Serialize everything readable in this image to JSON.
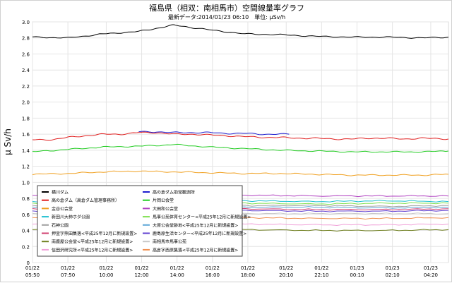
{
  "chart_data": {
    "type": "line",
    "title": "福島県（相双：南相馬市）空間線量率グラフ",
    "subtitle": "最新データ:2014/01/23 06:10　単位: μSv/h",
    "ylabel": "μ Sv/h",
    "xlabel": "",
    "ylim": [
      0,
      3.0
    ],
    "y_ticks": [
      "0",
      "0.2",
      "0.4",
      "0.6",
      "0.8",
      "1.0",
      "1.2",
      "1.4",
      "1.6",
      "1.8",
      "2.0",
      "2.2",
      "2.4",
      "2.6",
      "2.8",
      "3.0"
    ],
    "x_range_hours": [
      0,
      23.5
    ],
    "x_ticks": [
      {
        "date": "01/22",
        "time": "05:50",
        "h": 0
      },
      {
        "date": "01/22",
        "time": "07:50",
        "h": 2
      },
      {
        "date": "01/22",
        "time": "10:00",
        "h": 4.1667
      },
      {
        "date": "01/22",
        "time": "12:00",
        "h": 6.1667
      },
      {
        "date": "01/22",
        "time": "14:00",
        "h": 8.1667
      },
      {
        "date": "01/22",
        "time": "16:00",
        "h": 10.1667
      },
      {
        "date": "01/22",
        "time": "18:00",
        "h": 12.1667
      },
      {
        "date": "01/22",
        "time": "20:10",
        "h": 14.3333
      },
      {
        "date": "01/22",
        "time": "22:10",
        "h": 16.3333
      },
      {
        "date": "01/23",
        "time": "00:10",
        "h": 18.3333
      },
      {
        "date": "01/23",
        "time": "02:10",
        "h": 20.3333
      },
      {
        "date": "01/23",
        "time": "04:20",
        "h": 22.5
      }
    ],
    "grid": true,
    "legend_position": "bottom-left",
    "series": [
      {
        "name": "横川ダム",
        "color": "#000000",
        "x": [
          0,
          2,
          4,
          6,
          7,
          8,
          9,
          10,
          12,
          14,
          16,
          18,
          20,
          22,
          23.5
        ],
        "values": [
          2.81,
          2.8,
          2.85,
          2.88,
          2.92,
          2.96,
          2.93,
          2.9,
          2.85,
          2.84,
          2.82,
          2.81,
          2.81,
          2.8,
          2.81
        ]
      },
      {
        "name": "高の倉ダム助常観測所",
        "color": "#1f1fd0",
        "x": [
          6.0,
          7,
          8,
          9,
          10,
          11,
          12,
          13,
          14.5
        ],
        "values": [
          1.63,
          1.63,
          1.62,
          1.62,
          1.62,
          1.61,
          1.61,
          1.6,
          1.6
        ]
      },
      {
        "name": "高の倉ダム（高倉ダム管理事務所）",
        "color": "#e02020",
        "x": [
          0,
          1,
          2,
          3,
          4,
          5,
          6,
          7,
          8,
          9,
          10,
          11,
          12,
          13,
          14,
          15,
          16,
          17,
          18,
          19,
          20,
          21,
          22,
          23.5
        ],
        "values": [
          1.53,
          1.53,
          1.56,
          1.58,
          1.6,
          1.6,
          1.62,
          1.62,
          1.6,
          1.6,
          1.59,
          1.58,
          1.57,
          1.56,
          1.56,
          1.55,
          1.55,
          1.54,
          1.54,
          1.55,
          1.55,
          1.54,
          1.55,
          1.54
        ]
      },
      {
        "name": "片岡公会堂",
        "color": "#22cc22",
        "x": [
          0,
          2,
          4,
          6,
          8,
          10,
          12,
          14,
          16,
          18,
          20,
          22,
          23.5
        ],
        "values": [
          1.38,
          1.41,
          1.44,
          1.45,
          1.47,
          1.44,
          1.42,
          1.4,
          1.39,
          1.38,
          1.38,
          1.38,
          1.39
        ]
      },
      {
        "name": "金谷公会堂",
        "color": "#f0a020",
        "x": [
          0,
          2,
          4,
          6,
          8,
          10,
          12,
          14,
          16,
          18,
          20,
          22,
          23.5
        ],
        "values": [
          1.1,
          1.11,
          1.13,
          1.14,
          1.13,
          1.12,
          1.11,
          1.11,
          1.1,
          1.09,
          1.09,
          1.09,
          1.1
        ]
      },
      {
        "name": "大田和公会堂",
        "color": "#b040c0",
        "x": [
          0,
          4,
          8,
          12,
          16,
          20,
          23.5
        ],
        "values": [
          0.84,
          0.84,
          0.84,
          0.84,
          0.83,
          0.83,
          0.83
        ]
      },
      {
        "name": "新田川大柿ホダ公園",
        "color": "#20c0d0",
        "x": [
          0,
          4,
          8,
          12,
          16,
          20,
          23.5
        ],
        "values": [
          0.76,
          0.77,
          0.78,
          0.77,
          0.76,
          0.77,
          0.76
        ]
      },
      {
        "name": "馬事公苑体育センター<平成25年12月に新規設置>",
        "color": "#80e050",
        "x": [
          0,
          4,
          8,
          12,
          16,
          20,
          23.5
        ],
        "values": [
          0.74,
          0.74,
          0.75,
          0.74,
          0.73,
          0.74,
          0.74
        ]
      },
      {
        "name": "石神公園",
        "color": "#a0a0a0",
        "x": [
          0,
          4,
          8,
          12,
          16,
          20,
          23.5
        ],
        "values": [
          0.71,
          0.72,
          0.72,
          0.71,
          0.71,
          0.7,
          0.71
        ]
      },
      {
        "name": "大原公会堂跡地<平成25年12月に新規設置>",
        "color": "#60a8d8",
        "x": [
          0,
          4,
          8,
          12,
          16,
          20,
          23.5
        ],
        "values": [
          0.69,
          0.7,
          0.7,
          0.69,
          0.69,
          0.68,
          0.69
        ]
      },
      {
        "name": "押釜字熊田集落<平成25年12月に新規設置>",
        "color": "#d04070",
        "x": [
          0,
          4,
          8,
          12,
          16,
          20,
          23.5
        ],
        "values": [
          0.67,
          0.67,
          0.68,
          0.67,
          0.66,
          0.66,
          0.67
        ]
      },
      {
        "name": "鹿島原生活センター<平成25年12月に新規設置>",
        "color": "#6040d0",
        "x": [
          0,
          4,
          8,
          12,
          16,
          20,
          23.5
        ],
        "values": [
          0.64,
          0.65,
          0.66,
          0.65,
          0.64,
          0.64,
          0.65
        ]
      },
      {
        "name": "南相馬市馬事公苑",
        "color": "#c8c8c8",
        "x": [
          0,
          4,
          8,
          12,
          16,
          20,
          23.5
        ],
        "values": [
          0.61,
          0.62,
          0.62,
          0.61,
          0.61,
          0.61,
          0.61
        ]
      },
      {
        "name": "高倉字西原集落<平成25年12月に新規設置>",
        "color": "#f09050",
        "x": [
          0,
          4,
          8,
          12,
          16,
          20,
          23.5
        ],
        "values": [
          0.56,
          0.56,
          0.57,
          0.56,
          0.55,
          0.55,
          0.56
        ]
      },
      {
        "name": "南鹿屋公会堂<平成25年12月に新規設置>",
        "color": "#708020",
        "x": [
          0,
          4,
          8,
          12,
          16,
          20,
          23.5
        ],
        "values": [
          0.41,
          0.41,
          0.42,
          0.41,
          0.4,
          0.4,
          0.41
        ]
      },
      {
        "name": "信田沢研究所<平成25年12月に新規設置>",
        "color": "#f0a0d8",
        "x": [
          0,
          4,
          8,
          12,
          16,
          20,
          23.5
        ],
        "values": [
          0.48,
          0.48,
          0.49,
          0.48,
          0.47,
          0.47,
          0.48
        ]
      }
    ],
    "legend_order": [
      "横川ダム",
      "高の倉ダム助常観測所",
      "高の倉ダム（高倉ダム管理事務所）",
      "片岡公会堂",
      "金谷公会堂",
      "大田和公会堂",
      "新田川大柿ホダ公園",
      "馬事公苑体育センター<平成25年12月に新規設置>",
      "石神公園",
      "大原公会堂跡地<平成25年12月に新規設置>",
      "押釜字熊田集落<平成25年12月に新規設置>",
      "鹿島原生活センター<平成25年12月に新規設置>",
      "南鹿屋公会堂<平成25年12月に新規設置>",
      "南相馬市馬事公苑",
      "信田沢研究所<平成25年12月に新規設置>",
      "高倉字西原集落<平成25年12月に新規設置>"
    ]
  }
}
